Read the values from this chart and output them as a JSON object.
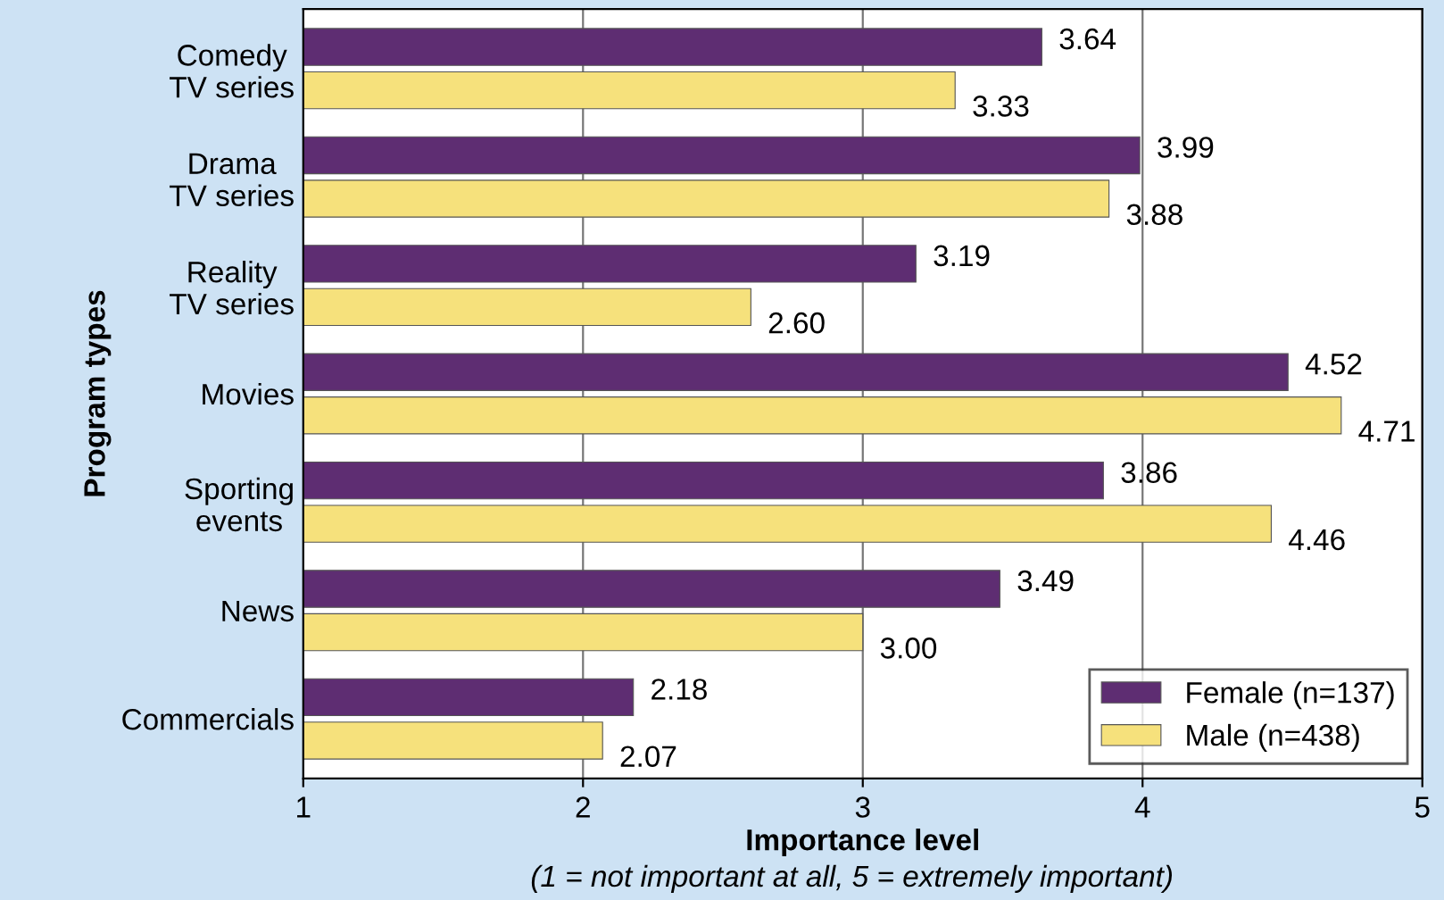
{
  "chart_data": {
    "type": "bar",
    "orientation": "horizontal",
    "xlabel": "Importance level",
    "ylabel": "Program types",
    "annotations": [
      "(1 = not important at all, 5 = extremely important)"
    ],
    "categories": [
      "Comedy\nTV series",
      "Drama\nTV series",
      "Reality\nTV series",
      "Movies",
      "Sporting\nevents",
      "News",
      "Commercials"
    ],
    "series": [
      {
        "name": "Female (n=137)",
        "color": "#5e2d72",
        "values": [
          3.64,
          3.99,
          3.19,
          4.52,
          3.86,
          3.49,
          2.18
        ],
        "value_labels": [
          "3.64",
          "3.99",
          "3.19",
          "4.52",
          "3.86",
          "3.49",
          "2.18"
        ]
      },
      {
        "name": "Male (n=438)",
        "color": "#f6e17c",
        "values": [
          3.33,
          3.88,
          2.6,
          4.71,
          4.46,
          3.0,
          2.07
        ],
        "value_labels": [
          "3.33",
          "3.88",
          "2.60",
          "4.71",
          "4.46",
          "3.00",
          "2.07"
        ]
      }
    ],
    "xlim": [
      1,
      5
    ],
    "xticks": [
      1,
      2,
      3,
      4,
      5
    ],
    "grid": "x",
    "legend": "bottom right"
  }
}
